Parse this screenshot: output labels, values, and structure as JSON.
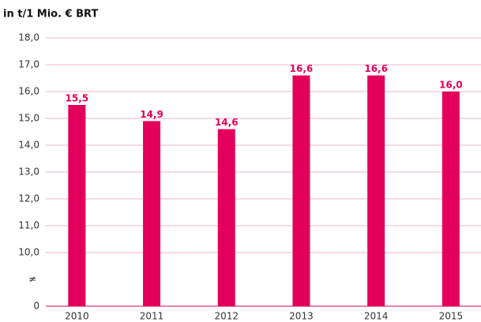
{
  "chart_data": {
    "type": "bar",
    "title": "in t/1 Mio. € BRT",
    "categories": [
      "2010",
      "2011",
      "2012",
      "2013",
      "2014",
      "2015"
    ],
    "values": [
      15.5,
      14.9,
      14.6,
      16.6,
      16.6,
      16.0
    ],
    "value_labels": [
      "15,5",
      "14,9",
      "14,6",
      "16,6",
      "16,6",
      "16,0"
    ],
    "color": "#e2005a",
    "ylim": [
      0,
      18
    ],
    "yticks": [
      0,
      {
        "value": 10,
        "label": "10,0"
      },
      {
        "value": 11,
        "label": "11,0"
      },
      {
        "value": 12,
        "label": "12,0"
      },
      {
        "value": 13,
        "label": "13,0"
      },
      {
        "value": 14,
        "label": "14,0"
      },
      {
        "value": 15,
        "label": "15,0"
      },
      {
        "value": 16,
        "label": "16,0"
      },
      {
        "value": 17,
        "label": "17,0"
      },
      {
        "value": 18,
        "label": "18,0"
      }
    ],
    "y_break": {
      "from": 0,
      "to": 10,
      "label": "≠"
    },
    "grid": true
  }
}
